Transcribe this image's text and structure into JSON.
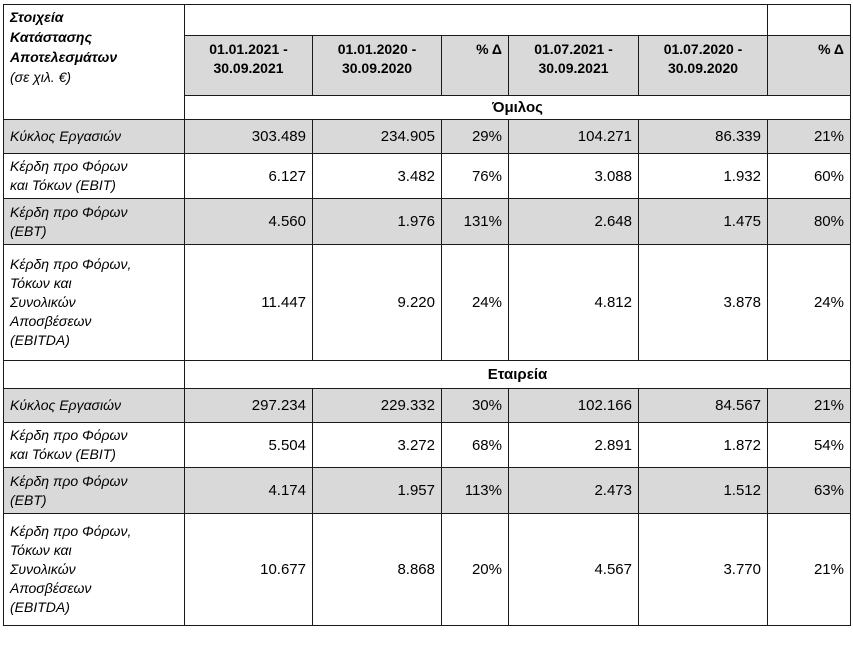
{
  "table": {
    "title_lines": [
      "Στοιχεία",
      "Κατάστασης",
      "Αποτελεσμάτων"
    ],
    "title_sub": "(σε χιλ. €)",
    "columns": [
      {
        "line1": "01.01.2021 -",
        "line2": "30.09.2021"
      },
      {
        "line1": "01.01.2020 -",
        "line2": "30.09.2020"
      },
      {
        "line1": "% Δ",
        "line2": ""
      },
      {
        "line1": "01.07.2021 -",
        "line2": "30.09.2021"
      },
      {
        "line1": "01.07.2020 -",
        "line2": "30.09.2020"
      },
      {
        "line1": "% Δ",
        "line2": ""
      }
    ],
    "sections": [
      {
        "name": "Όμιλος",
        "rows": [
          {
            "label_lines": [
              "Κύκλος Εργασιών"
            ],
            "values": [
              "303.489",
              "234.905",
              "29%",
              "104.271",
              "86.339",
              "21%"
            ]
          },
          {
            "label_lines": [
              "Κέρδη προ Φόρων",
              "και Τόκων (EBIT)"
            ],
            "values": [
              "6.127",
              "3.482",
              "76%",
              "3.088",
              "1.932",
              "60%"
            ]
          },
          {
            "label_lines": [
              "Κέρδη προ Φόρων",
              "(EBT)"
            ],
            "values": [
              "4.560",
              "1.976",
              "131%",
              "2.648",
              "1.475",
              "80%"
            ]
          },
          {
            "label_lines": [
              "Κέρδη προ Φόρων,",
              "Τόκων και",
              "Συνολικών",
              "Αποσβέσεων",
              "(EBITDA)"
            ],
            "values": [
              "11.447",
              "9.220",
              "24%",
              "4.812",
              "3.878",
              "24%"
            ]
          }
        ]
      },
      {
        "name": "Εταιρεία",
        "rows": [
          {
            "label_lines": [
              "Κύκλος Εργασιών"
            ],
            "values": [
              "297.234",
              "229.332",
              "30%",
              "102.166",
              "84.567",
              "21%"
            ]
          },
          {
            "label_lines": [
              "Κέρδη προ Φόρων",
              "και Τόκων (EBIT)"
            ],
            "values": [
              "5.504",
              "3.272",
              "68%",
              "2.891",
              "1.872",
              "54%"
            ]
          },
          {
            "label_lines": [
              "Κέρδη προ Φόρων",
              "(EBT)"
            ],
            "values": [
              "4.174",
              "1.957",
              "113%",
              "2.473",
              "1.512",
              "63%"
            ]
          },
          {
            "label_lines": [
              "Κέρδη προ Φόρων,",
              "Τόκων και",
              "Συνολικών",
              "Αποσβέσεων",
              "(EBITDA)"
            ],
            "values": [
              "10.677",
              "8.868",
              "20%",
              "4.567",
              "3.770",
              "21%"
            ]
          }
        ]
      }
    ]
  }
}
